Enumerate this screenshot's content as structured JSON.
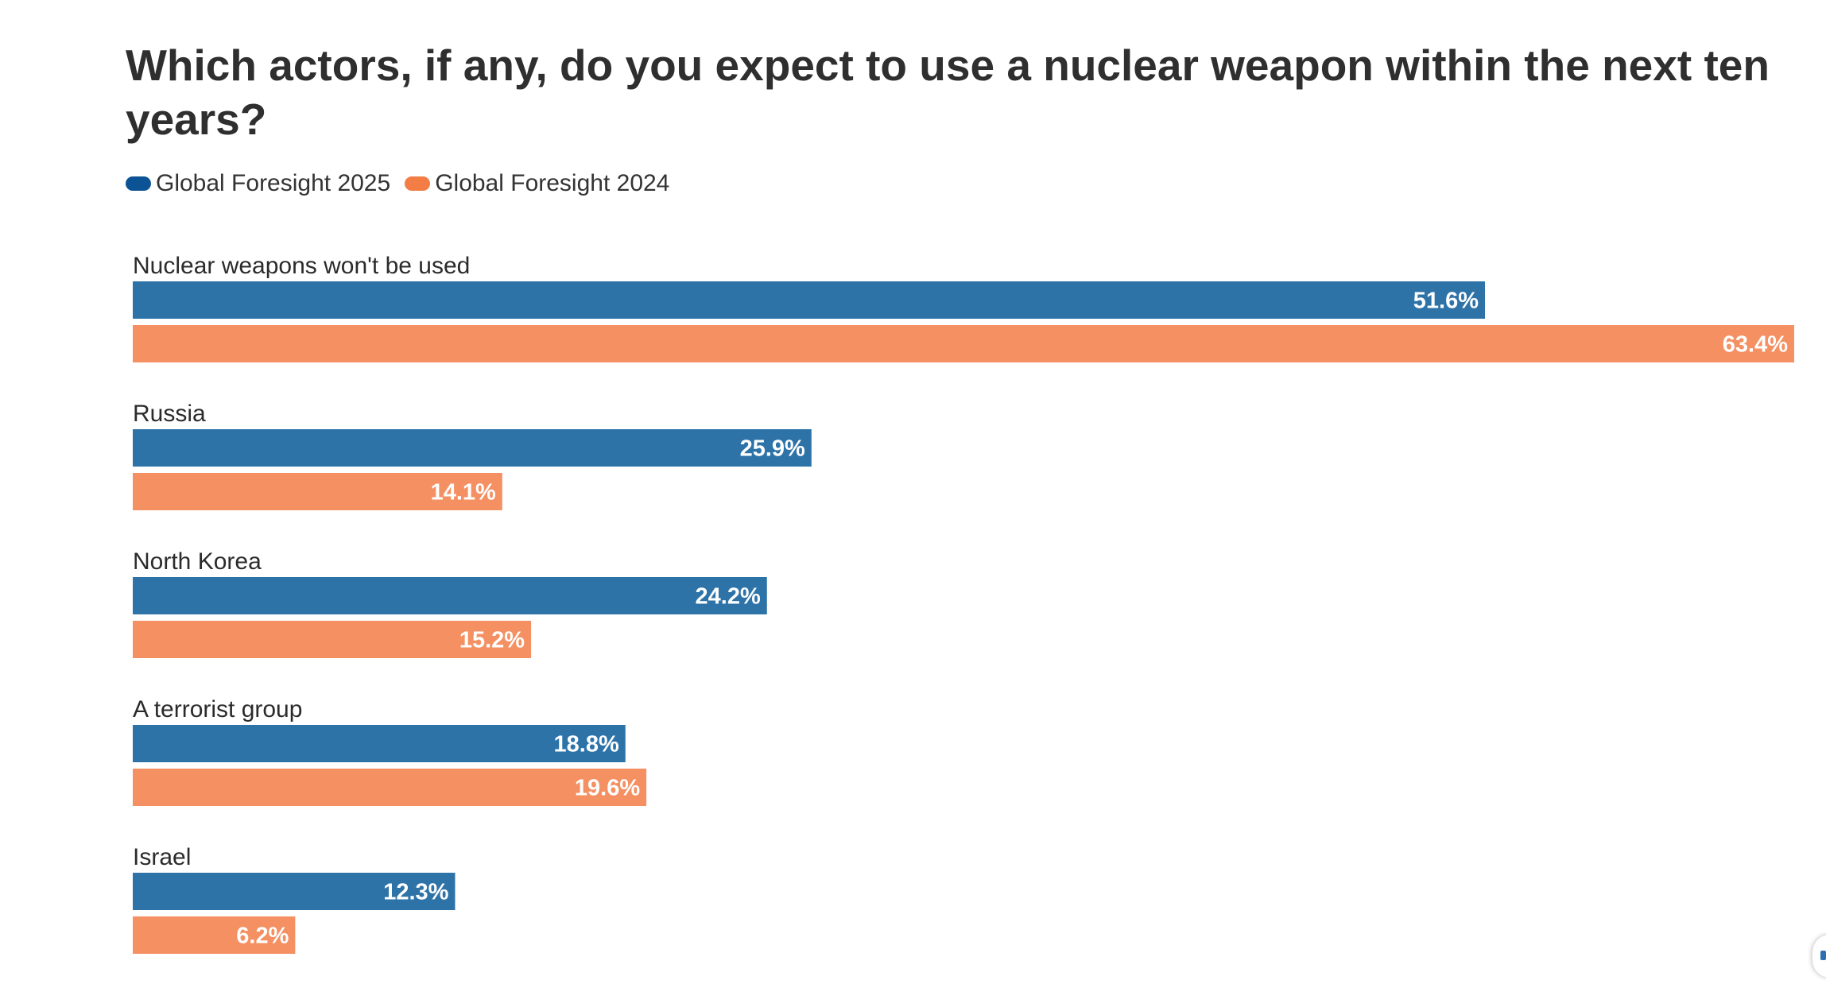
{
  "chart_data": {
    "type": "bar",
    "orientation": "horizontal",
    "title": "Which actors, if any, do you expect to use a nuclear weapon within the next ten years?",
    "categories": [
      "Nuclear weapons won't be used",
      "Russia",
      "North Korea",
      "A terrorist group",
      "Israel"
    ],
    "series": [
      {
        "name": "Global Foresight 2025",
        "color": "#2e73a8",
        "legend_color": "#0b5394",
        "values": [
          51.6,
          25.9,
          24.2,
          18.8,
          12.3
        ],
        "labels": [
          "51.6%",
          "25.9%",
          "24.2%",
          "18.8%",
          "12.3%"
        ]
      },
      {
        "name": "Global Foresight 2024",
        "color": "#f49062",
        "legend_color": "#f47c45",
        "values": [
          63.4,
          14.1,
          15.2,
          19.6,
          6.2
        ],
        "labels": [
          "63.4%",
          "14.1%",
          "15.2%",
          "19.6%",
          "6.2%"
        ]
      }
    ],
    "xlim": [
      0,
      63.4
    ],
    "unit": "%",
    "grid": false,
    "legend_position": "top-left"
  }
}
